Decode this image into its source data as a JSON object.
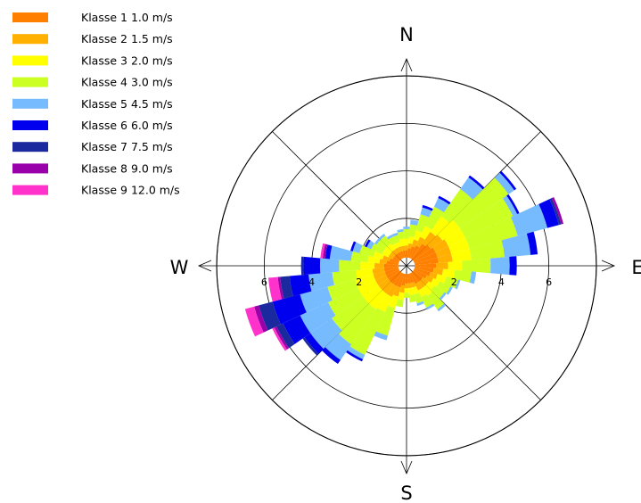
{
  "chart_data": {
    "type": "windrose",
    "title": "",
    "legend": {
      "placement": "top-left",
      "items": [
        {
          "label": "Klasse 1  1.0 m/s",
          "color": "#ff8000"
        },
        {
          "label": "Klasse 2  1.5 m/s",
          "color": "#ffb000"
        },
        {
          "label": "Klasse 3  2.0 m/s",
          "color": "#ffff00"
        },
        {
          "label": "Klasse 4  3.0 m/s",
          "color": "#ccff22"
        },
        {
          "label": "Klasse 5  4.5 m/s",
          "color": "#77bbff"
        },
        {
          "label": "Klasse 6  6.0 m/s",
          "color": "#0000ee"
        },
        {
          "label": "Klasse 7  7.5 m/s",
          "color": "#1a2a9e"
        },
        {
          "label": "Klasse 8  9.0 m/s",
          "color": "#9900aa"
        },
        {
          "label": "Klasse 9 12.0 m/s",
          "color": "#ff33cc"
        }
      ]
    },
    "directions": {
      "north": "N",
      "east": "E",
      "south": "S",
      "west": "W"
    },
    "radial_ticks": [
      "2",
      "4",
      "6"
    ],
    "radial_range": [
      0,
      8
    ],
    "grid": "circles every 2, spokes every 45°",
    "sector_width_deg": 10,
    "sectors": [
      {
        "dir": 0,
        "values": [
          0.3,
          0.2,
          0.3,
          0.4,
          0.1,
          0,
          0,
          0,
          0
        ]
      },
      {
        "dir": 10,
        "values": [
          0.4,
          0.2,
          0.3,
          0.5,
          0.2,
          0,
          0,
          0,
          0
        ]
      },
      {
        "dir": 20,
        "values": [
          0.5,
          0.3,
          0.4,
          0.7,
          0.3,
          0.1,
          0,
          0,
          0
        ]
      },
      {
        "dir": 30,
        "values": [
          0.6,
          0.4,
          0.5,
          0.9,
          0.4,
          0.1,
          0,
          0,
          0
        ]
      },
      {
        "dir": 40,
        "values": [
          0.8,
          0.6,
          0.8,
          1.4,
          0.6,
          0.1,
          0,
          0,
          0
        ]
      },
      {
        "dir": 50,
        "values": [
          0.9,
          0.6,
          0.9,
          2.5,
          0.3,
          0.1,
          0,
          0,
          0
        ]
      },
      {
        "dir": 60,
        "values": [
          1.0,
          0.6,
          0.8,
          2.2,
          0.2,
          0.1,
          0,
          0,
          0
        ]
      },
      {
        "dir": 70,
        "values": [
          1.0,
          0.6,
          0.8,
          2.1,
          1.3,
          0.5,
          0.1,
          0.1,
          0
        ]
      },
      {
        "dir": 80,
        "values": [
          1.0,
          0.6,
          0.8,
          1.4,
          1.1,
          0.3,
          0,
          0,
          0
        ]
      },
      {
        "dir": 90,
        "values": [
          0.9,
          0.5,
          0.6,
          1.2,
          0.8,
          0.3,
          0,
          0,
          0
        ]
      },
      {
        "dir": 100,
        "values": [
          0.8,
          0.4,
          0.5,
          0.7,
          0.2,
          0,
          0,
          0,
          0
        ]
      },
      {
        "dir": 110,
        "values": [
          0.7,
          0.3,
          0.4,
          0.5,
          0.1,
          0,
          0,
          0,
          0
        ]
      },
      {
        "dir": 120,
        "values": [
          0.6,
          0.3,
          0.3,
          0.5,
          0.1,
          0,
          0,
          0,
          0
        ]
      },
      {
        "dir": 130,
        "values": [
          0.5,
          0.3,
          0.3,
          0.5,
          0.1,
          0,
          0,
          0,
          0
        ]
      },
      {
        "dir": 140,
        "values": [
          0.5,
          0.3,
          0.4,
          0.7,
          0.1,
          0,
          0,
          0,
          0
        ]
      },
      {
        "dir": 150,
        "values": [
          0.5,
          0.3,
          0.3,
          0.5,
          0.1,
          0,
          0,
          0,
          0
        ]
      },
      {
        "dir": 160,
        "values": [
          0.4,
          0.2,
          0.3,
          0.4,
          0.1,
          0,
          0,
          0,
          0
        ]
      },
      {
        "dir": 170,
        "values": [
          0.4,
          0.2,
          0.3,
          0.3,
          0,
          0,
          0,
          0,
          0
        ]
      },
      {
        "dir": 180,
        "values": [
          0.4,
          0.2,
          0.2,
          0.2,
          0,
          0,
          0,
          0,
          0
        ]
      },
      {
        "dir": 190,
        "values": [
          0.5,
          0.3,
          0.3,
          0.3,
          0,
          0,
          0,
          0,
          0
        ]
      },
      {
        "dir": 200,
        "values": [
          0.6,
          0.4,
          0.5,
          1.2,
          0.2,
          0,
          0,
          0,
          0
        ]
      },
      {
        "dir": 210,
        "values": [
          0.6,
          0.5,
          0.7,
          2.0,
          0.2,
          0.1,
          0,
          0,
          0
        ]
      },
      {
        "dir": 220,
        "values": [
          0.6,
          0.5,
          0.8,
          1.8,
          0.8,
          0.2,
          0,
          0,
          0
        ]
      },
      {
        "dir": 230,
        "values": [
          0.6,
          0.5,
          0.8,
          1.6,
          1.1,
          0.3,
          0.1,
          0,
          0
        ]
      },
      {
        "dir": 240,
        "values": [
          0.6,
          0.5,
          0.8,
          1.4,
          1.3,
          0.8,
          0.3,
          0.1,
          0.1
        ]
      },
      {
        "dir": 250,
        "values": [
          0.6,
          0.5,
          0.8,
          1.2,
          1.2,
          1.2,
          0.6,
          0.2,
          0.4
        ]
      },
      {
        "dir": 260,
        "values": [
          0.6,
          0.5,
          0.7,
          1.0,
          1.0,
          0.8,
          0.4,
          0.1,
          0.4
        ]
      },
      {
        "dir": 270,
        "values": [
          0.6,
          0.4,
          0.6,
          0.9,
          0.8,
          0.7,
          0.1,
          0,
          0
        ]
      },
      {
        "dir": 280,
        "values": [
          0.5,
          0.3,
          0.5,
          0.7,
          0.9,
          0.2,
          0,
          0.1,
          0.1
        ]
      },
      {
        "dir": 290,
        "values": [
          0.4,
          0.3,
          0.4,
          0.6,
          0.3,
          0.1,
          0,
          0,
          0
        ]
      },
      {
        "dir": 300,
        "values": [
          0.3,
          0.2,
          0.3,
          0.5,
          0.2,
          0.1,
          0,
          0,
          0
        ]
      },
      {
        "dir": 310,
        "values": [
          0.3,
          0.2,
          0.3,
          0.4,
          0.1,
          0,
          0,
          0,
          0
        ]
      },
      {
        "dir": 320,
        "values": [
          0.3,
          0.2,
          0.3,
          0.4,
          0.1,
          0,
          0,
          0,
          0
        ]
      },
      {
        "dir": 330,
        "values": [
          0.3,
          0.2,
          0.2,
          0.3,
          0.1,
          0,
          0,
          0,
          0
        ]
      },
      {
        "dir": 340,
        "values": [
          0.3,
          0.2,
          0.2,
          0.3,
          0.1,
          0,
          0,
          0,
          0
        ]
      },
      {
        "dir": 350,
        "values": [
          0.3,
          0.2,
          0.3,
          0.3,
          0.1,
          0,
          0,
          0,
          0
        ]
      }
    ]
  }
}
